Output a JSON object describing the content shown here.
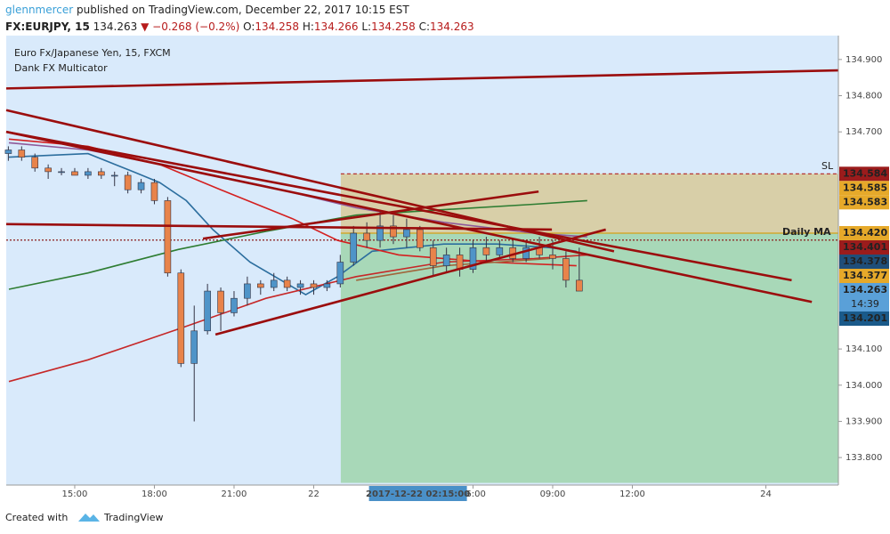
{
  "header": {
    "author": "glennmercer",
    "published": "published on TradingView.com, December 22, 2017 10:15 EST",
    "symbol": "FX:EURJPY, 15",
    "last": "134.263",
    "change": "▼ −0.268 (−0.2%)",
    "open_label": "O:",
    "open": "134.258",
    "high_label": "H:",
    "high": "134.266",
    "low_label": "L:",
    "low": "134.258",
    "close_label": "C:",
    "close": "134.263"
  },
  "chart_data": {
    "type": "candlestick",
    "legend": [
      "Euro Fx/Japanese Yen, 15, FXCM",
      "Dank FX Multicator"
    ],
    "xlim": [
      12.42,
      43.76
    ],
    "ylim": [
      133.724,
      134.966
    ],
    "xticks": [
      {
        "value": 15,
        "label": "15:00"
      },
      {
        "value": 18,
        "label": "18:00"
      },
      {
        "value": 21,
        "label": "21:00"
      },
      {
        "value": 24,
        "label": "22"
      },
      {
        "value": 30,
        "label": "06:00"
      },
      {
        "value": 33,
        "label": "09:00"
      },
      {
        "value": 36,
        "label": "12:00"
      },
      {
        "value": 41.03,
        "label": "24"
      }
    ],
    "yticks": [
      {
        "value": 134.9,
        "label": "134.900"
      },
      {
        "value": 134.8,
        "label": "134.800"
      },
      {
        "value": 134.7,
        "label": "134.700"
      },
      {
        "value": 134.1,
        "label": "134.100"
      },
      {
        "value": 134.0,
        "label": "134.000"
      },
      {
        "value": 133.9,
        "label": "133.900"
      },
      {
        "value": 133.8,
        "label": "133.800"
      }
    ],
    "up_color": "#4f94c8",
    "down_color": "#e8834a",
    "candles": {
      "x": [
        12.5,
        13,
        13.5,
        14,
        14.5,
        15,
        15.5,
        16,
        16.5,
        17,
        17.5,
        18,
        18.5,
        19,
        19.5,
        20,
        20.5,
        21,
        21.5,
        22,
        22.5,
        23,
        23.5,
        24,
        24.5,
        25,
        25.5,
        26,
        26.5,
        27,
        27.5,
        28,
        28.5,
        29,
        29.5,
        30,
        30.5,
        31,
        31.5,
        32,
        32.5,
        33,
        33.5,
        34
      ],
      "open": [
        134.64,
        134.65,
        134.63,
        134.6,
        134.59,
        134.59,
        134.58,
        134.59,
        134.58,
        134.58,
        134.54,
        134.56,
        134.51,
        134.31,
        134.06,
        134.15,
        134.26,
        134.2,
        134.24,
        134.28,
        134.27,
        134.29,
        134.27,
        134.28,
        134.27,
        134.28,
        134.34,
        134.42,
        134.4,
        134.44,
        134.41,
        134.43,
        134.38,
        134.33,
        134.36,
        134.32,
        134.38,
        134.36,
        134.38,
        134.35,
        134.38,
        134.36,
        134.35,
        134.29
      ],
      "high": [
        134.66,
        134.66,
        134.64,
        134.61,
        134.6,
        134.6,
        134.6,
        134.6,
        134.59,
        134.59,
        134.57,
        134.57,
        134.52,
        134.32,
        134.22,
        134.28,
        134.27,
        134.26,
        134.3,
        134.29,
        134.31,
        134.3,
        134.29,
        134.29,
        134.29,
        134.36,
        134.44,
        134.45,
        134.48,
        134.47,
        134.46,
        134.44,
        134.4,
        134.38,
        134.38,
        134.4,
        134.41,
        134.4,
        134.4,
        134.4,
        134.41,
        134.4,
        134.37,
        134.38
      ],
      "low": [
        134.62,
        134.62,
        134.59,
        134.57,
        134.58,
        134.58,
        134.57,
        134.57,
        134.55,
        134.53,
        134.53,
        134.5,
        134.3,
        134.05,
        133.9,
        134.14,
        134.15,
        134.19,
        134.22,
        134.25,
        134.26,
        134.26,
        134.25,
        134.25,
        134.26,
        134.27,
        134.33,
        134.38,
        134.38,
        134.39,
        134.38,
        134.37,
        134.3,
        134.31,
        134.3,
        134.31,
        134.34,
        134.35,
        134.34,
        134.34,
        134.35,
        134.32,
        134.27,
        134.26
      ],
      "close": [
        134.65,
        134.63,
        134.6,
        134.59,
        134.59,
        134.58,
        134.59,
        134.58,
        134.58,
        134.54,
        134.56,
        134.51,
        134.31,
        134.06,
        134.15,
        134.26,
        134.2,
        134.24,
        134.28,
        134.27,
        134.29,
        134.27,
        134.28,
        134.27,
        134.28,
        134.34,
        134.42,
        134.4,
        134.44,
        134.41,
        134.43,
        134.38,
        134.33,
        134.36,
        134.32,
        134.38,
        134.36,
        134.38,
        134.35,
        134.38,
        134.36,
        134.35,
        134.29,
        134.26
      ]
    },
    "series": [
      {
        "color": "#2c6e9e",
        "x": [
          12.52,
          15.5,
          17.2,
          18.2,
          19.2,
          20.2,
          21.6,
          23.7,
          24.9,
          26.2,
          28.9,
          30.9,
          32.9,
          33.9
        ],
        "values": [
          134.63,
          134.64,
          134.59,
          134.56,
          134.51,
          134.43,
          134.34,
          134.25,
          134.3,
          134.37,
          134.39,
          134.39,
          134.38,
          134.37
        ]
      },
      {
        "color": "#d42020",
        "x": [
          12.52,
          15.5,
          18.2,
          20.5,
          23.2,
          24.9,
          27.2,
          30.6,
          33.9
        ],
        "values": [
          134.68,
          134.66,
          134.61,
          134.54,
          134.46,
          134.4,
          134.36,
          134.34,
          134.33
        ]
      },
      {
        "color": "#8e5a9a",
        "x": [
          12.52,
          15.5,
          18.9,
          22.2,
          25.6,
          28.9,
          32.3,
          34.3
        ],
        "values": [
          134.67,
          134.65,
          134.6,
          134.55,
          134.49,
          134.45,
          134.42,
          134.41
        ]
      },
      {
        "color": "#2e7d32",
        "x": [
          12.52,
          15.5,
          18.9,
          22.2,
          25.6,
          28.9,
          32.3,
          34.3
        ],
        "values": [
          134.265,
          134.31,
          134.375,
          134.425,
          134.47,
          134.485,
          134.5,
          134.51
        ]
      },
      {
        "color": "#c62828",
        "x": [
          12.52,
          15.5,
          18.9,
          22.2,
          25.6,
          28.9,
          32.3,
          34.3
        ],
        "values": [
          134.01,
          134.07,
          134.155,
          134.24,
          134.3,
          134.34,
          134.35,
          134.36
        ]
      },
      {
        "color": "#a0663c",
        "x": [
          25.6,
          28.9,
          32.9
        ],
        "values": [
          134.29,
          134.33,
          134.35
        ]
      }
    ],
    "trendline_color": "#9b0d0d",
    "trendlines": [
      {
        "x": [
          12.42,
          43.76
        ],
        "values": [
          134.82,
          134.87
        ]
      },
      {
        "x": [
          12.42,
          35.31
        ],
        "values": [
          134.76,
          134.37
        ]
      },
      {
        "x": [
          12.42,
          42.76
        ],
        "values": [
          134.7,
          134.23
        ]
      },
      {
        "x": [
          12.42,
          42.0
        ],
        "values": [
          134.7,
          134.29
        ]
      },
      {
        "x": [
          12.42,
          32.97
        ],
        "values": [
          134.445,
          134.43
        ]
      },
      {
        "x": [
          19.83,
          32.47
        ],
        "values": [
          134.405,
          134.535
        ]
      },
      {
        "x": [
          20.3,
          35.0
        ],
        "values": [
          134.14,
          134.43
        ]
      }
    ],
    "position": {
      "x": 25.02,
      "stop": 134.584,
      "entry": 134.42,
      "target": 133.73,
      "stop_color": "#d8cfa8",
      "target_color": "#a8d8b8"
    },
    "levels": [
      {
        "value": 134.584,
        "x": 25.02,
        "color": "#b22222",
        "dash": "4,3"
      },
      {
        "value": 134.401,
        "x": 12.42,
        "color": "#8b1a1a",
        "dash": "2,2"
      },
      {
        "value": 134.42,
        "x": 25.02,
        "color": "#d4a017"
      }
    ],
    "annotations": {
      "sl": "SL",
      "daily_ma": "Daily MA"
    },
    "price_labels": [
      {
        "value": 134.584,
        "label": "134.584",
        "bg": "#9b1c1c",
        "fg": "#ffffff"
      },
      {
        "value": 134.585,
        "label": "134.585",
        "bg": "#e6a92a",
        "fg": "#222222"
      },
      {
        "value": 134.583,
        "label": "134.583",
        "bg": "#e6a92a",
        "fg": "#222222"
      },
      {
        "value": 134.42,
        "label": "134.420",
        "bg": "#e6a92a",
        "fg": "#222222"
      },
      {
        "value": 134.401,
        "label": "134.401",
        "bg": "#9b1c1c",
        "fg": "#ffffff"
      },
      {
        "value": 134.378,
        "label": "134.378",
        "bg": "#1f4e79",
        "fg": "#ffffff"
      },
      {
        "value": 134.377,
        "label": "134.377",
        "bg": "#e6a92a",
        "fg": "#222222"
      },
      {
        "value": 134.263,
        "label": "134.263",
        "bg": "#5aa0d8",
        "fg": "#ffffff"
      },
      {
        "value": 134.201,
        "label": "134.201",
        "bg": "#1a5a8a",
        "fg": "#ffffff"
      }
    ],
    "countdown": "14:39",
    "crosshair": {
      "value": 26.25,
      "label": "2017-12-22 02:15:00"
    }
  },
  "footer": {
    "created": "Created with",
    "brand": "TradingView"
  }
}
